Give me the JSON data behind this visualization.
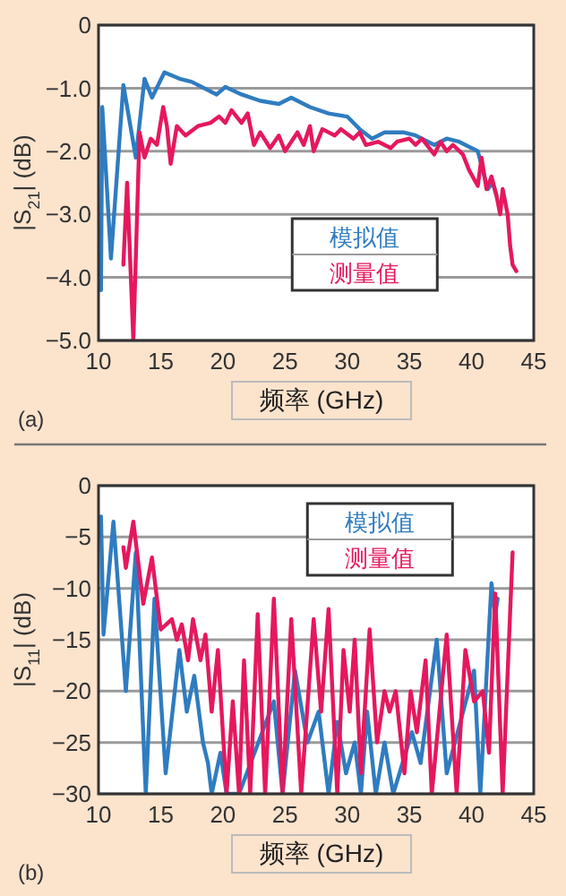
{
  "chart_data": [
    {
      "type": "line",
      "ylabel": "|S$_{21}$| (dB)",
      "xlabel": "频率 (GHz)",
      "xlim": [
        10,
        45
      ],
      "xticks": [
        10,
        15,
        20,
        25,
        30,
        35,
        40,
        45
      ],
      "ylim": [
        -5,
        0
      ],
      "yticks": [
        0,
        {
          "value": -1,
          "label": "−1.0"
        },
        {
          "value": -2,
          "label": "−2.0"
        },
        {
          "value": -3,
          "label": "−3.0"
        },
        {
          "value": -4,
          "label": "−4.0"
        },
        {
          "value": -5,
          "label": "−5.0"
        }
      ],
      "grid": "y",
      "legend": "bottom right",
      "annotations": [
        "(a)"
      ],
      "series": [
        {
          "name": "模拟值",
          "color": "#2f7cc0",
          "x": [
            10.2,
            10.3,
            11,
            12,
            13,
            13.7,
            14.3,
            15.3,
            16.5,
            17.5,
            19,
            19.5,
            20.2,
            21.5,
            23,
            24.5,
            25.5,
            27,
            28.5,
            30,
            31,
            32,
            33,
            34.5,
            35.5,
            37,
            38,
            39,
            40,
            40.5,
            41.3,
            41.7,
            42
          ],
          "values": [
            -4.2,
            -1.3,
            -3.7,
            -0.95,
            -2.1,
            -0.85,
            -1.15,
            -0.75,
            -0.85,
            -0.9,
            -1.05,
            -1.1,
            -0.98,
            -1.1,
            -1.2,
            -1.25,
            -1.15,
            -1.3,
            -1.4,
            -1.45,
            -1.65,
            -1.8,
            -1.7,
            -1.7,
            -1.75,
            -1.9,
            -1.8,
            -1.85,
            -1.95,
            -2,
            -2.6,
            -2.5,
            -2.7
          ]
        },
        {
          "name": "测量值",
          "color": "#e5185e",
          "x": [
            12,
            12.3,
            12.8,
            13.3,
            13.7,
            14.2,
            14.7,
            15.2,
            15.5,
            15.8,
            16.3,
            17,
            18,
            19,
            19.7,
            20.2,
            20.7,
            21.5,
            22,
            22.5,
            23,
            23.8,
            24.5,
            25,
            26,
            26.5,
            27,
            27.3,
            28,
            29,
            29.5,
            30.5,
            31,
            31.5,
            32.5,
            33.5,
            34,
            35,
            35.5,
            36,
            37,
            37.5,
            38,
            38.5,
            39.3,
            39.8,
            40.5,
            40.8,
            41.2,
            41.6,
            42,
            42.3,
            42.5,
            42.9,
            43.1,
            43.3,
            43.6
          ],
          "values": [
            -3.8,
            -2.5,
            -5,
            -1.7,
            -2.1,
            -1.8,
            -1.9,
            -1.3,
            -1.6,
            -2.2,
            -1.6,
            -1.75,
            -1.6,
            -1.55,
            -1.45,
            -1.55,
            -1.35,
            -1.55,
            -1.4,
            -1.9,
            -1.7,
            -1.95,
            -1.75,
            -2,
            -1.7,
            -1.9,
            -1.6,
            -2,
            -1.65,
            -1.75,
            -1.65,
            -1.8,
            -1.7,
            -1.9,
            -1.85,
            -1.95,
            -1.85,
            -1.8,
            -1.9,
            -1.8,
            -2.05,
            -1.85,
            -2,
            -1.9,
            -2.05,
            -2.3,
            -2.55,
            -2.1,
            -2.6,
            -2.4,
            -2.7,
            -3,
            -2.6,
            -3,
            -3.5,
            -3.8,
            -3.9
          ]
        }
      ]
    },
    {
      "type": "line",
      "ylabel": "|S$_{11}$| (dB)",
      "xlabel": "频率 (GHz)",
      "xlim": [
        10,
        45
      ],
      "xticks": [
        10,
        15,
        20,
        25,
        30,
        35,
        40,
        45
      ],
      "ylim": [
        -30,
        0
      ],
      "yticks": [
        0,
        {
          "value": -5,
          "label": "−5"
        },
        {
          "value": -10,
          "label": "−10"
        },
        {
          "value": -15,
          "label": "−15"
        },
        {
          "value": -20,
          "label": "−20"
        },
        {
          "value": -25,
          "label": "−25"
        },
        {
          "value": -30,
          "label": "−30"
        }
      ],
      "grid": "y",
      "legend": "top right",
      "annotations": [
        "(b)"
      ],
      "series": [
        {
          "name": "模拟值",
          "color": "#2f7cc0",
          "x": [
            10.2,
            10.4,
            11.2,
            12.2,
            13,
            13.8,
            14.5,
            15.4,
            16.5,
            17.1,
            17.7,
            18.4,
            18.8,
            19.1,
            19.8,
            20.3,
            21.3,
            24.1,
            24.8,
            25.8,
            26.8,
            27.7,
            28.5,
            29.2,
            29.9,
            30.6,
            31.1,
            31.6,
            32.3,
            33,
            33.7,
            35.2,
            35.9,
            37.2,
            38,
            40.2,
            40.7,
            41.6,
            41.9,
            42.1
          ],
          "values": [
            -3,
            -14.5,
            -3.5,
            -20,
            -6.5,
            -30,
            -11,
            -28,
            -16,
            -22,
            -18.5,
            -25,
            -27,
            -30,
            -26,
            -30,
            -30,
            -21,
            -30,
            -18,
            -25,
            -22,
            -30,
            -23,
            -28,
            -25,
            -30,
            -22,
            -30,
            -25,
            -30,
            -24,
            -27,
            -15,
            -28,
            -18,
            -30,
            -9.5,
            -12.5,
            -11
          ]
        },
        {
          "name": "测量值",
          "color": "#e5185e",
          "x": [
            12,
            12.2,
            12.8,
            13.6,
            14.3,
            15,
            15.9,
            16.3,
            16.7,
            17.2,
            17.6,
            18.2,
            18.6,
            19.1,
            19.6,
            20.3,
            20.8,
            21.3,
            21.7,
            22.2,
            22.8,
            23.4,
            24.1,
            24.8,
            25.5,
            26.3,
            27.3,
            27.9,
            28.5,
            29.2,
            29.7,
            30.2,
            30.6,
            31.1,
            31.8,
            32.4,
            33,
            33.4,
            33.9,
            34.6,
            35.1,
            35.6,
            36.3,
            36.8,
            38,
            38.8,
            39.5,
            40.2,
            40.9,
            41.4,
            41.9,
            42.5,
            43.3
          ],
          "values": [
            -6,
            -8,
            -3.5,
            -11.5,
            -7,
            -14,
            -13,
            -15,
            -13.5,
            -17,
            -13,
            -17,
            -14.5,
            -22,
            -16,
            -30,
            -21,
            -30,
            -17,
            -30,
            -12.5,
            -30,
            -11,
            -30,
            -13,
            -30,
            -13,
            -22,
            -12,
            -30,
            -16,
            -22,
            -15,
            -28,
            -14,
            -25,
            -20,
            -22,
            -20,
            -28,
            -20,
            -24,
            -17,
            -30,
            -14.5,
            -30,
            -16,
            -21,
            -20,
            -26,
            -10.5,
            -30,
            -6.5
          ]
        }
      ]
    }
  ]
}
